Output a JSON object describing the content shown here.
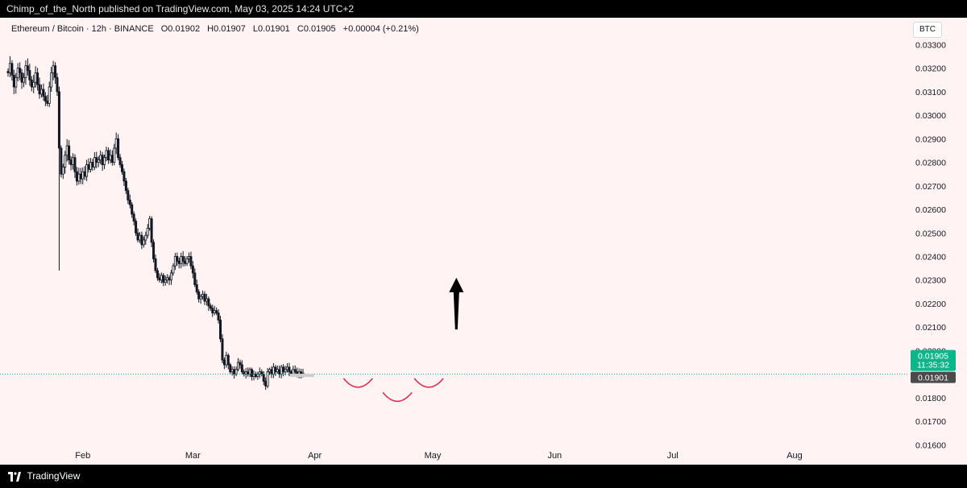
{
  "header": {
    "publisher_line": "Chimp_of_the_North published on TradingView.com, May 03, 2025 14:24 UTC+2"
  },
  "legend": {
    "symbol": "Ethereum / Bitcoin · 12h · BINANCE",
    "open": "O0.01902",
    "high": "H0.01907",
    "low": "L0.01901",
    "close": "C0.01905",
    "change": "+0.00004 (+0.21%)"
  },
  "currency_button": "BTC",
  "price_tags": {
    "last_price": "0.01905",
    "countdown": "11:35:32",
    "low_price": "0.01901"
  },
  "footer": {
    "brand": "TradingView"
  },
  "colors": {
    "background": "#fff3f3",
    "up": "#131722",
    "down": "#131722",
    "last_price_tag": "#0fb58a",
    "low_tag": "#4a4a4a",
    "annotation": "#e0304f"
  },
  "chart_data": {
    "type": "candlestick",
    "title": "",
    "y_axis": {
      "min": 0.0155,
      "max": 0.0338,
      "ticks": [
        "0.03300",
        "0.03200",
        "0.03100",
        "0.03000",
        "0.02900",
        "0.02800",
        "0.02700",
        "0.02600",
        "0.02500",
        "0.02400",
        "0.02300",
        "0.02200",
        "0.02100",
        "0.02000",
        "0.01800",
        "0.01700",
        "0.01600"
      ]
    },
    "x_axis": {
      "months": [
        "Feb",
        "Mar",
        "Apr",
        "May",
        "Jun",
        "Jul",
        "Aug"
      ]
    },
    "candles_start": "2025-01-13",
    "interval_hours": 12,
    "closes": [
      0.0318,
      0.0322,
      0.0317,
      0.0312,
      0.0316,
      0.032,
      0.0318,
      0.0314,
      0.0316,
      0.0321,
      0.0319,
      0.0315,
      0.0312,
      0.0314,
      0.0318,
      0.0313,
      0.0309,
      0.0311,
      0.0308,
      0.0306,
      0.0305,
      0.0312,
      0.0318,
      0.0321,
      0.0316,
      0.031,
      0.0286,
      0.0275,
      0.0278,
      0.0283,
      0.0287,
      0.0281,
      0.0279,
      0.0282,
      0.0276,
      0.0272,
      0.0275,
      0.0273,
      0.0276,
      0.0274,
      0.0279,
      0.0277,
      0.028,
      0.0278,
      0.0282,
      0.028,
      0.0281,
      0.0283,
      0.0279,
      0.0282,
      0.0285,
      0.0281,
      0.0283,
      0.028,
      0.0286,
      0.029,
      0.0282,
      0.0279,
      0.0276,
      0.0272,
      0.0268,
      0.0264,
      0.0262,
      0.0258,
      0.0255,
      0.025,
      0.0247,
      0.0249,
      0.0245,
      0.0247,
      0.0249,
      0.0252,
      0.0256,
      0.0246,
      0.0239,
      0.0234,
      0.0231,
      0.023,
      0.0232,
      0.0229,
      0.023,
      0.0231,
      0.023,
      0.0233,
      0.0236,
      0.024,
      0.0238,
      0.0237,
      0.024,
      0.0238,
      0.0237,
      0.0239,
      0.024,
      0.0236,
      0.0233,
      0.0228,
      0.0225,
      0.0222,
      0.0223,
      0.0224,
      0.0221,
      0.0222,
      0.0219,
      0.0218,
      0.0216,
      0.0217,
      0.0216,
      0.0213,
      0.0205,
      0.0196,
      0.0194,
      0.0198,
      0.0194,
      0.0191,
      0.0192,
      0.019,
      0.0192,
      0.0195,
      0.0194,
      0.0191,
      0.019,
      0.0191,
      0.019,
      0.0192,
      0.0189,
      0.019,
      0.0189,
      0.019,
      0.0191,
      0.019,
      0.0187,
      0.0185,
      0.0191,
      0.0192,
      0.019,
      0.0193,
      0.0191,
      0.0192,
      0.019,
      0.0193,
      0.0191,
      0.0192,
      0.0193,
      0.0191,
      0.019,
      0.0192,
      0.0191,
      0.019,
      0.0191,
      0.019,
      0.01905
    ],
    "annotations": {
      "arrow": {
        "direction": "up",
        "from": 0.0209,
        "to": 0.0231,
        "date": "2025-05-07"
      },
      "shoulders": [
        {
          "center_date": "2025-04-12",
          "price": 0.01855
        },
        {
          "center_date": "2025-04-22",
          "price": 0.01795
        },
        {
          "center_date": "2025-04-30",
          "price": 0.01855
        }
      ]
    }
  }
}
